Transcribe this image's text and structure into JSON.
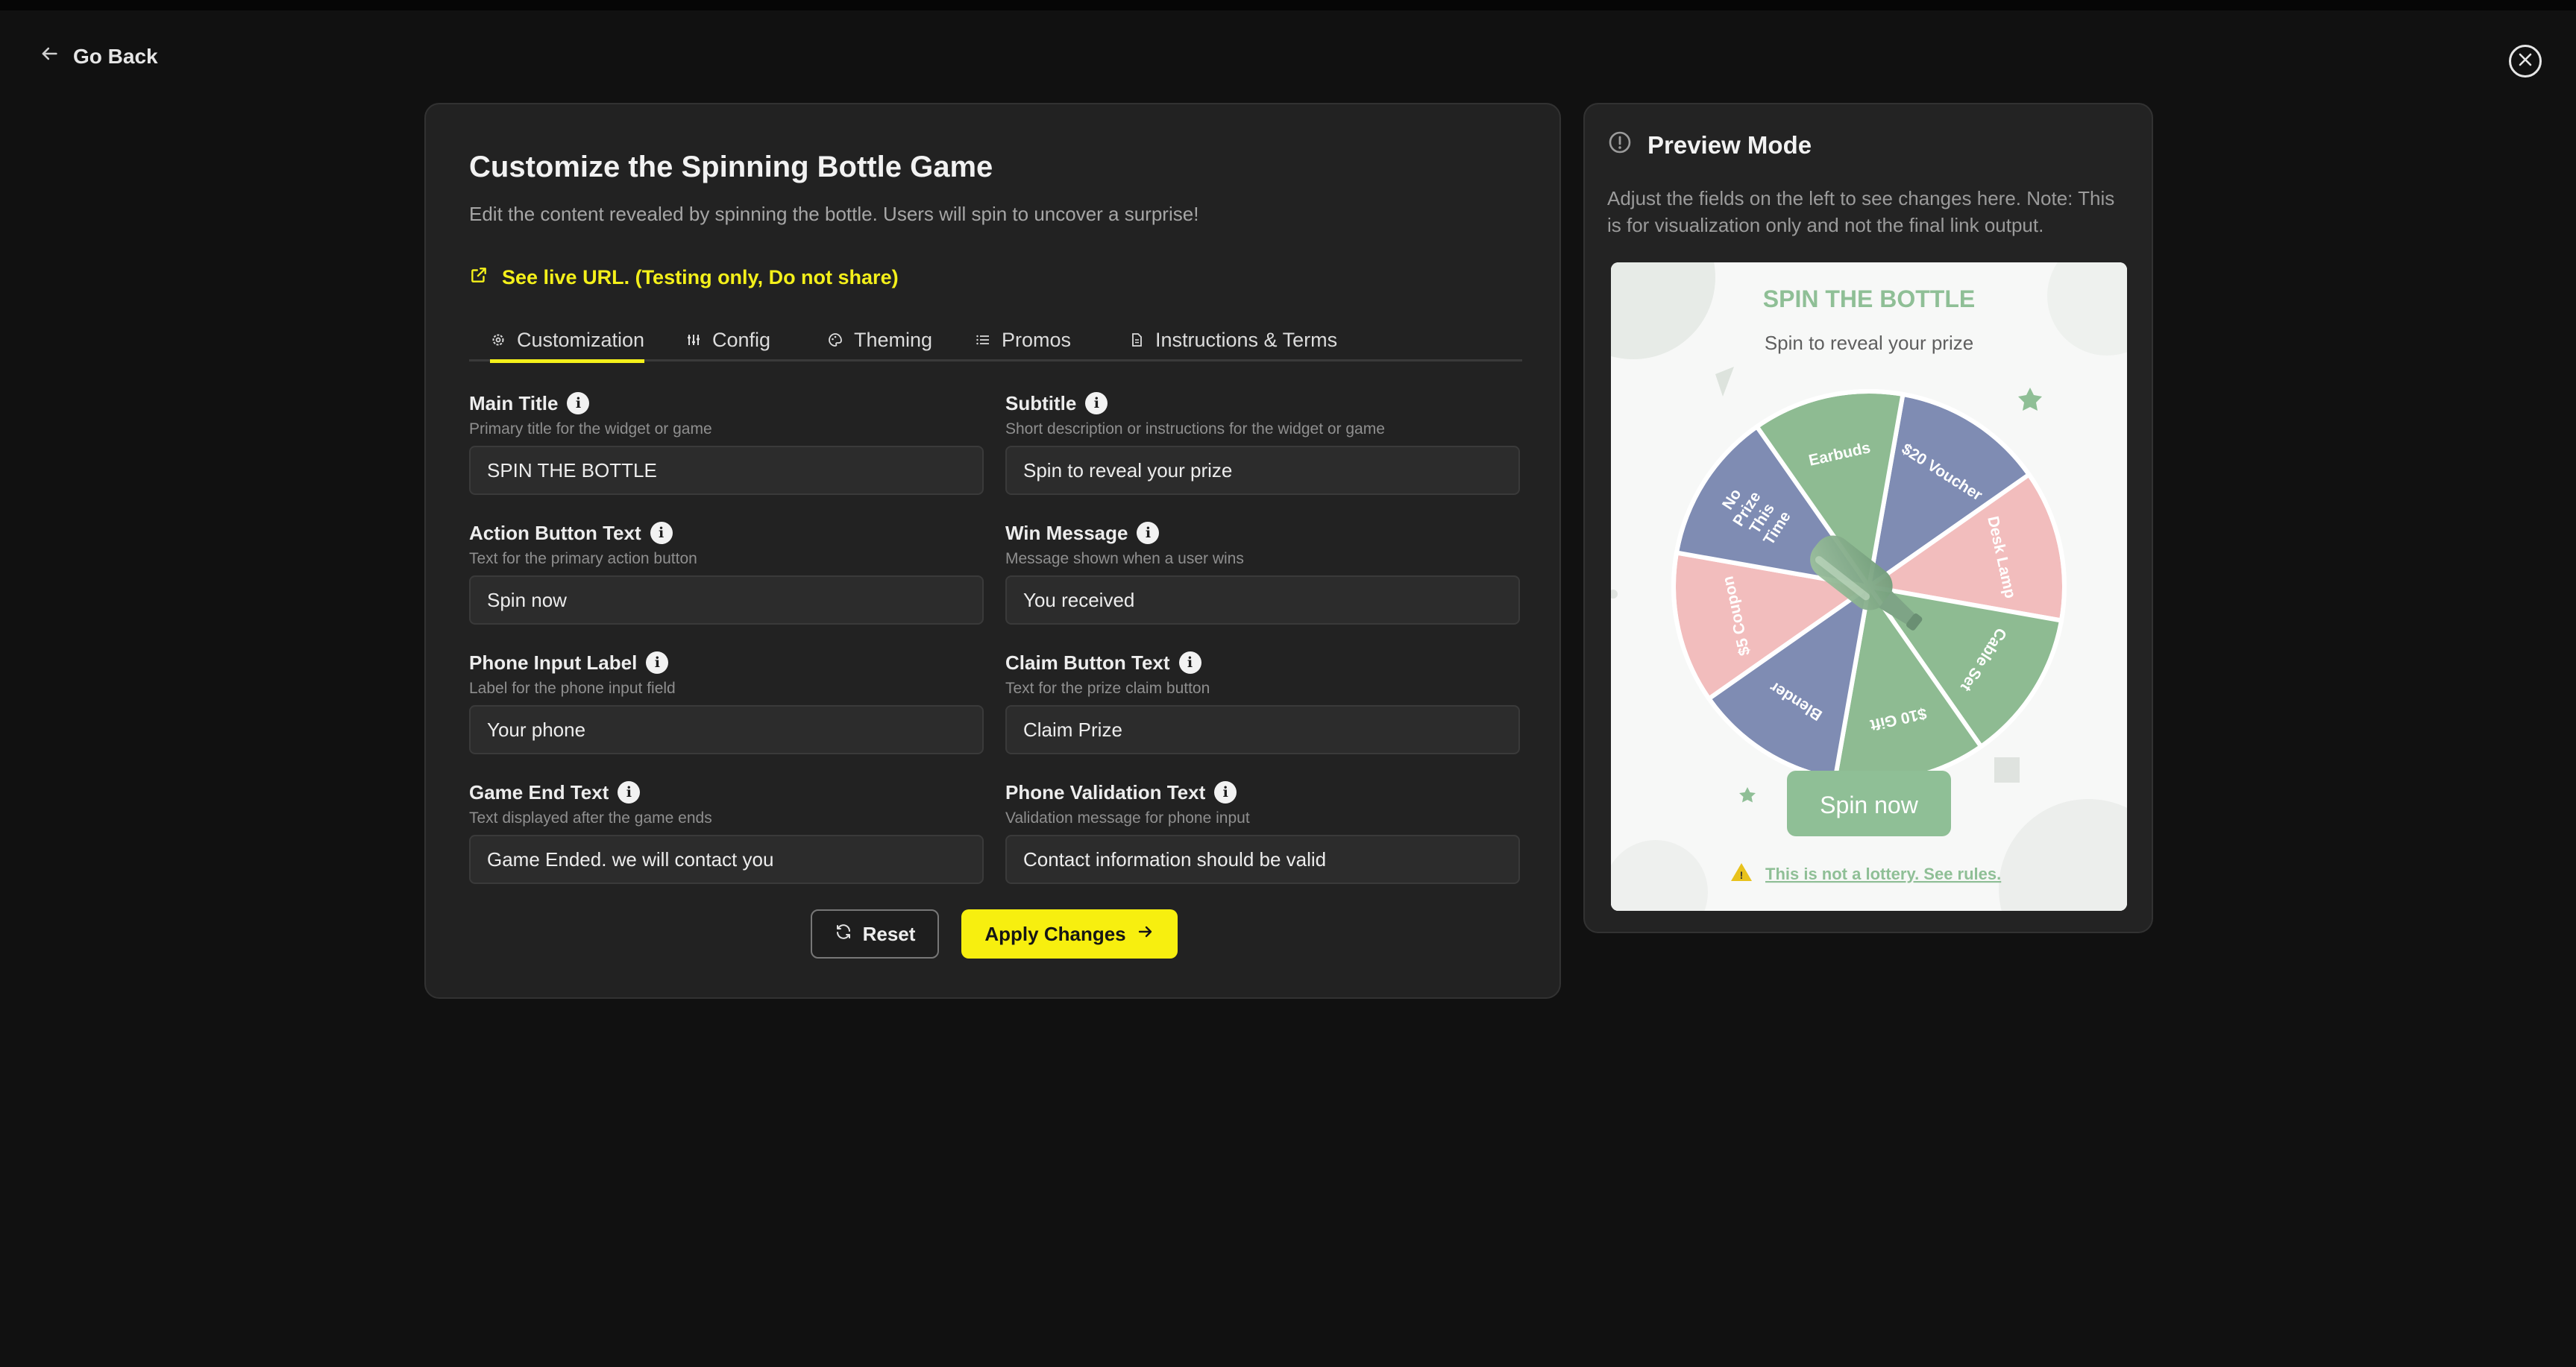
{
  "nav": {
    "go_back": "Go Back"
  },
  "page": {
    "title": "Customize the Spinning Bottle Game",
    "description": "Edit the content revealed by spinning the bottle. Users will spin to uncover a surprise!",
    "live_url_label": "See live URL. (Testing only, Do not share)"
  },
  "tabs": [
    {
      "label": "Customization",
      "icon": "gear-icon",
      "active": true
    },
    {
      "label": "Config",
      "icon": "sliders-icon"
    },
    {
      "label": "Theming",
      "icon": "palette-icon"
    },
    {
      "label": "Promos",
      "icon": "list-icon"
    },
    {
      "label": "Instructions & Terms",
      "icon": "document-icon"
    }
  ],
  "fields": {
    "main_title": {
      "label": "Main Title",
      "help": "Primary title for the widget or game",
      "value": "SPIN THE BOTTLE"
    },
    "subtitle": {
      "label": "Subtitle",
      "help": "Short description or instructions for the widget or game",
      "value": "Spin to reveal your prize"
    },
    "action_button_text": {
      "label": "Action Button Text",
      "help": "Text for the primary action button",
      "value": "Spin now"
    },
    "win_message": {
      "label": "Win Message",
      "help": "Message shown when a user wins",
      "value": "You received"
    },
    "phone_input_label": {
      "label": "Phone Input Label",
      "help": "Label for the phone input field",
      "value": "Your phone"
    },
    "claim_button_text": {
      "label": "Claim Button Text",
      "help": "Text for the prize claim button",
      "value": "Claim Prize"
    },
    "game_end_text": {
      "label": "Game End Text",
      "help": "Text displayed after the game ends",
      "value": "Game Ended. we will contact you"
    },
    "phone_validation_text": {
      "label": "Phone Validation Text",
      "help": "Validation message for phone input",
      "value": "Contact information should be valid"
    }
  },
  "actions": {
    "reset": "Reset",
    "apply": "Apply Changes"
  },
  "preview": {
    "heading": "Preview Mode",
    "note": "Adjust the fields on the left to see changes here. Note: This is for visualization only and not the final link output.",
    "game_title": "SPIN THE BOTTLE",
    "game_subtitle": "Spin to reveal your prize",
    "spin_button": "Spin now",
    "disclaimer": "This is not a lottery. See rules.",
    "wheel_segments": [
      {
        "label": "$20 Voucher",
        "color": "#7f8cb3"
      },
      {
        "label": "Desk Lamp",
        "color": "#f2bdbd"
      },
      {
        "label": "Cable Set",
        "color": "#8ebb92"
      },
      {
        "label": "$10 Gift",
        "color": "#8ebb92"
      },
      {
        "label": "Blender",
        "color": "#7f8cb3"
      },
      {
        "label": "$5 Coupon",
        "color": "#f2bdbd"
      },
      {
        "label": "No Prize This Time",
        "color": "#7f8cb3"
      },
      {
        "label": "Earbuds",
        "color": "#8ebb92"
      }
    ]
  },
  "colors": {
    "accent": "#f7ef0f",
    "background": "#111111",
    "panel": "#222222",
    "preview_green": "#8fbf96"
  }
}
